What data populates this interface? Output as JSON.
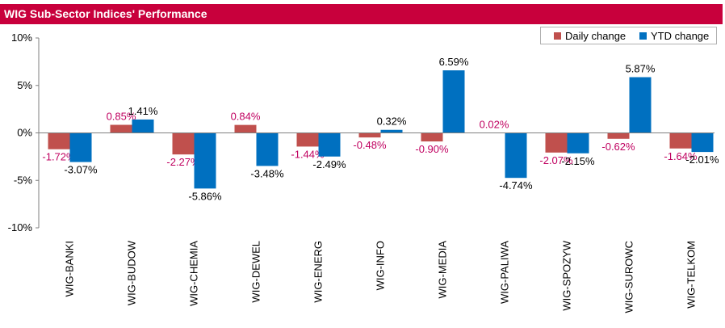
{
  "title": "WIG Sub-Sector Indices' Performance",
  "colors": {
    "title_bar": "#c8003c",
    "daily": "#c0504d",
    "ytd": "#0070c0",
    "daily_label": "#c00060"
  },
  "chart_data": {
    "type": "bar",
    "title": "WIG Sub-Sector Indices' Performance",
    "categories": [
      "WIG-BANKI",
      "WIG-BUDOW",
      "WIG-CHEMIA",
      "WIG-DEWEL",
      "WIG-ENERG",
      "WIG-INFO",
      "WIG-MEDIA",
      "WIG-PALIWA",
      "WIG-SPOZYW",
      "WIG-SUROWC",
      "WIG-TELKOM"
    ],
    "series": [
      {
        "name": "Daily change",
        "values": [
          -1.72,
          0.85,
          -2.27,
          0.84,
          -1.44,
          -0.48,
          -0.9,
          0.02,
          -2.07,
          -0.62,
          -1.64
        ],
        "labels": [
          "-1.72%",
          "0.85%",
          "-2.27%",
          "0.84%",
          "-1.44%",
          "-0.48%",
          "-0.90%",
          "0.02%",
          "-2.07%",
          "-0.62%",
          "-1.64%"
        ]
      },
      {
        "name": "YTD change",
        "values": [
          -3.07,
          1.41,
          -5.86,
          -3.48,
          -2.49,
          0.32,
          6.59,
          -4.74,
          -2.15,
          5.87,
          -2.01
        ],
        "labels": [
          "-3.07%",
          "1.41%",
          "-5.86%",
          "-3.48%",
          "-2.49%",
          "0.32%",
          "6.59%",
          "-4.74%",
          "-2.15%",
          "5.87%",
          "-2.01%"
        ]
      }
    ],
    "y_ticks": [
      10,
      5,
      0,
      -5,
      -10
    ],
    "y_tick_labels": [
      "10%",
      "5%",
      "0%",
      "-5%",
      "-10%"
    ],
    "ylim": [
      -10,
      10
    ],
    "grid": false,
    "legend_position": "top-right"
  }
}
